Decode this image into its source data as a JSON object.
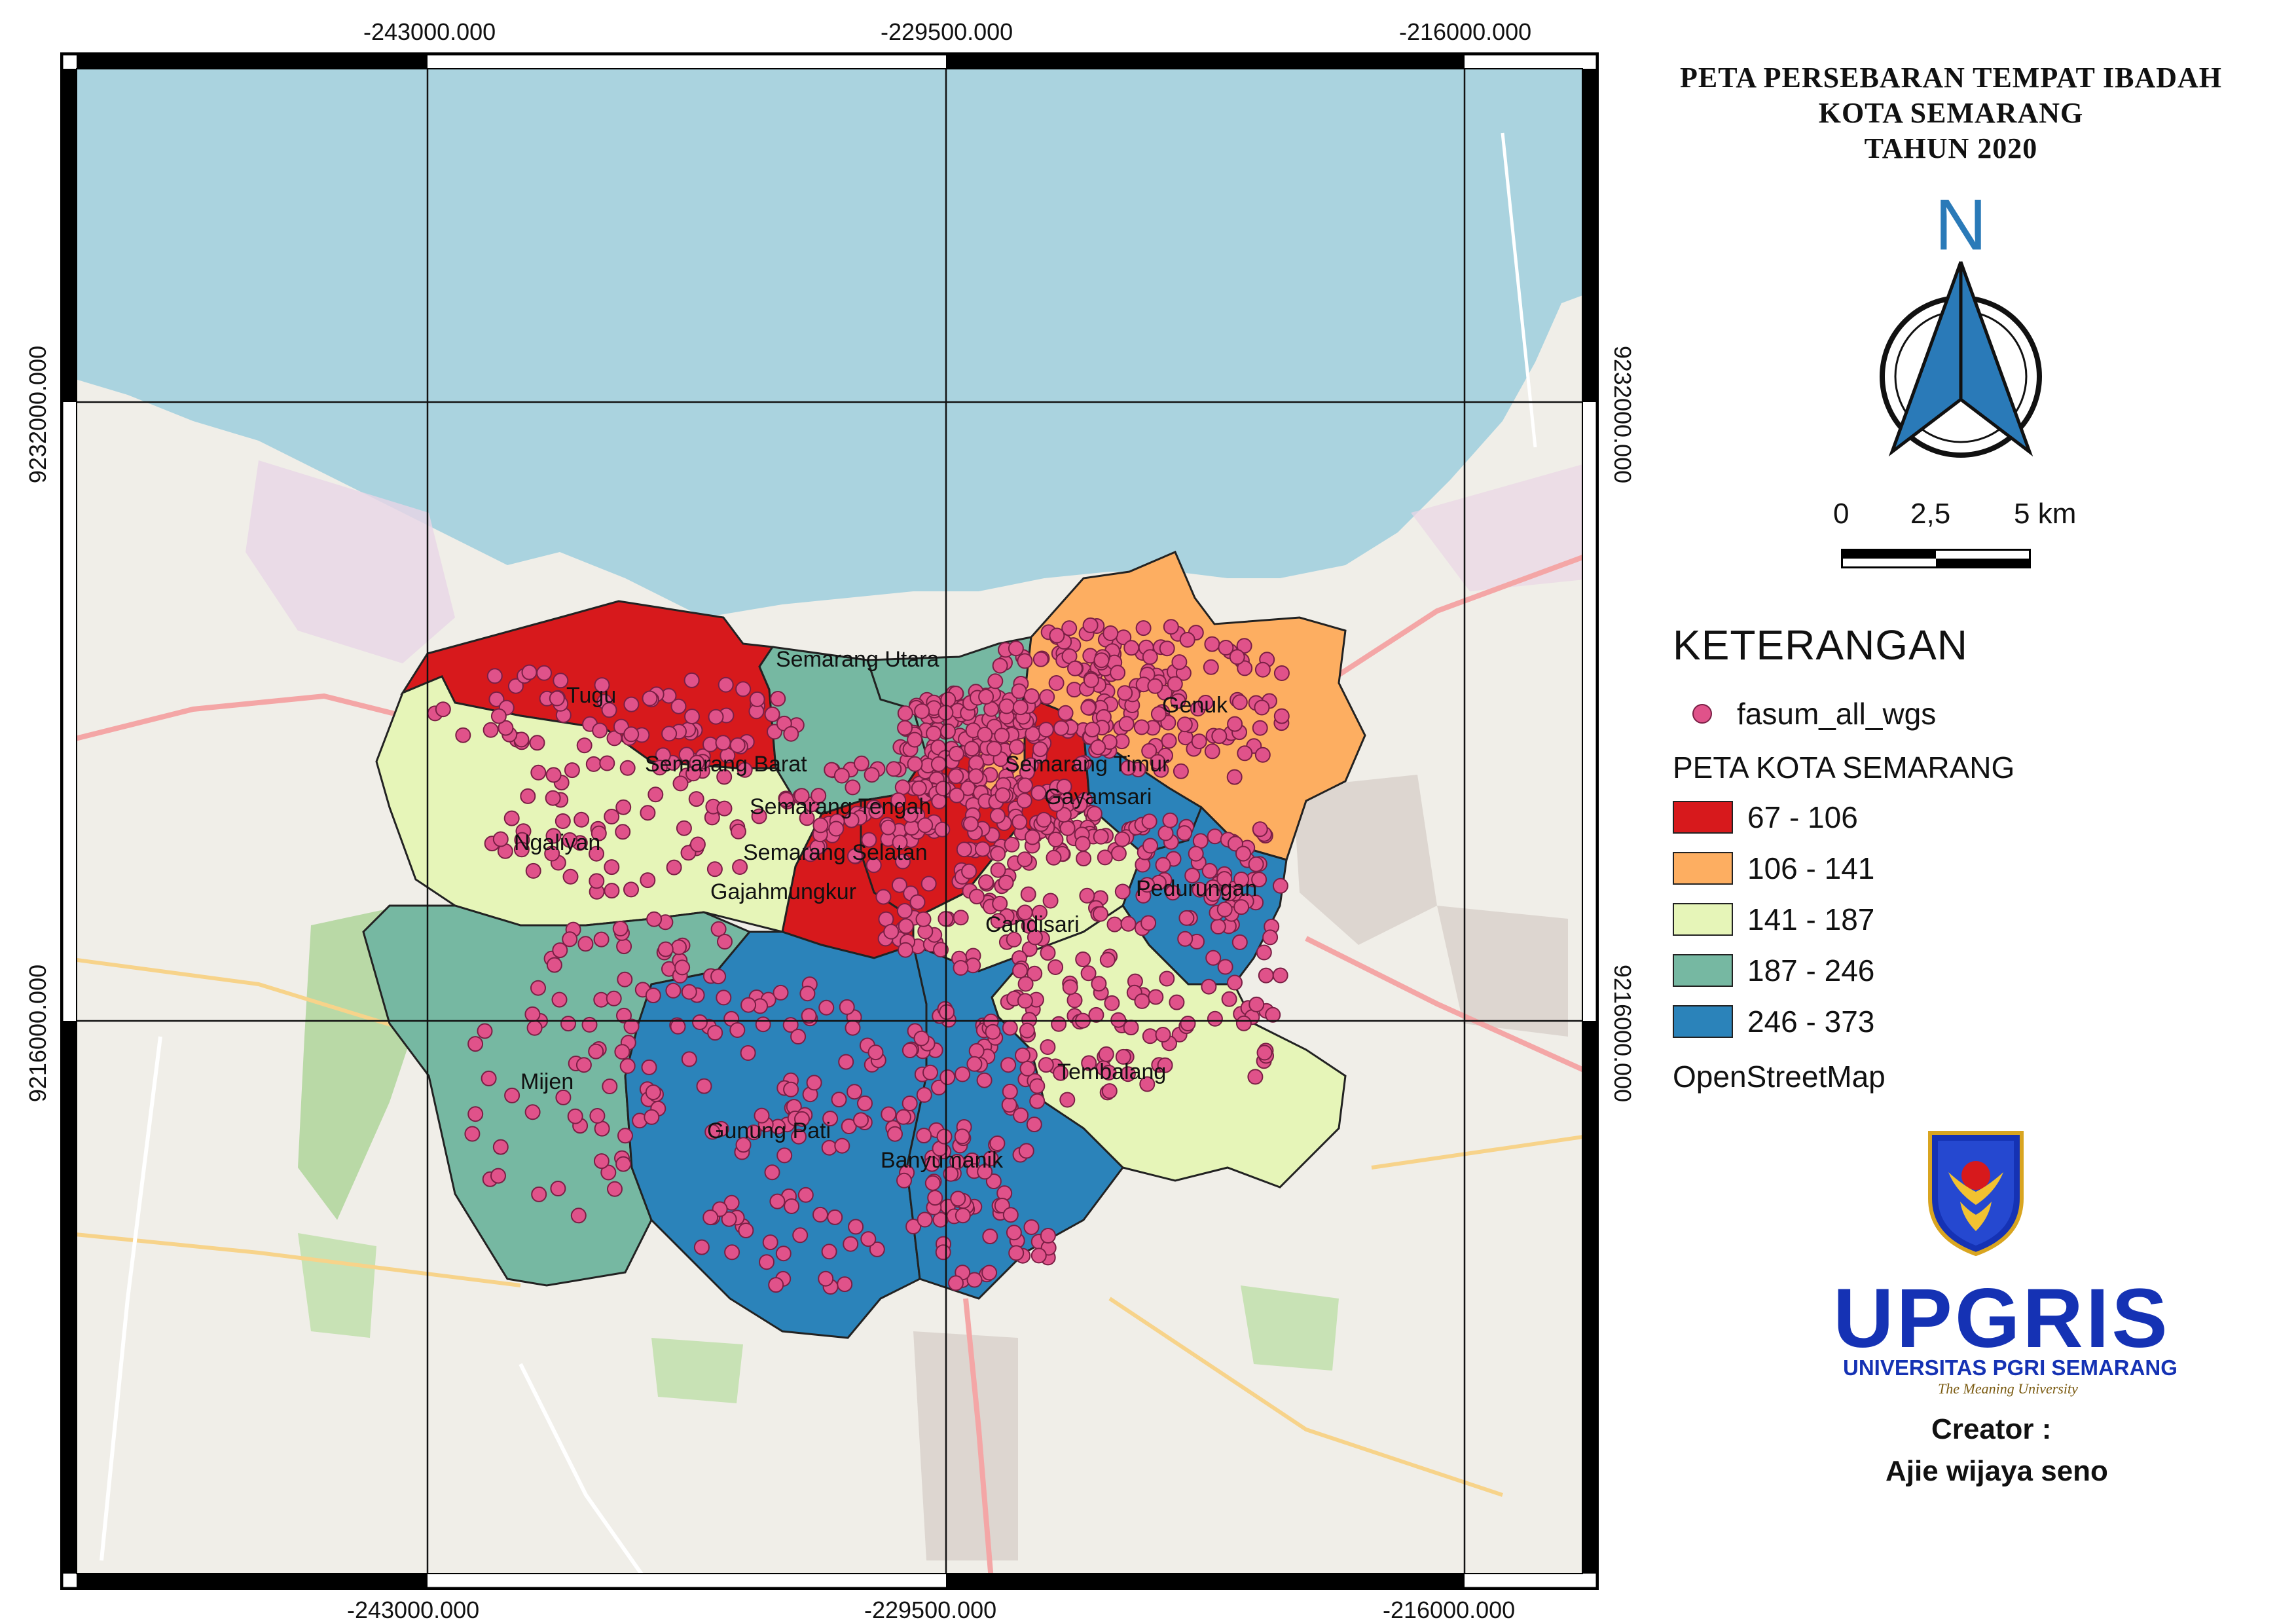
{
  "title": {
    "line1": "PETA PERSEBARAN TEMPAT IBADAH",
    "line2": "KOTA SEMARANG",
    "line3": "TAHUN 2020"
  },
  "coords": {
    "x_top": [
      "-243000.000",
      "-229500.000",
      "-216000.000"
    ],
    "x_bottom": [
      "-243000.000",
      "-229500.000",
      "-216000.000"
    ],
    "y_left": [
      "9232000.000",
      "9216000.000"
    ],
    "y_right": [
      "9232000.000",
      "9216000.000"
    ]
  },
  "north_arrow": {
    "letter": "N",
    "icon": "north-arrow-icon",
    "color": "#2a7ab8"
  },
  "scale": {
    "labels": [
      "0",
      "2,5",
      "5 km"
    ]
  },
  "legend": {
    "title": "KETERANGAN",
    "point_layer": "fasum_all_wgs",
    "point_color": "#e0528a",
    "polygon_layer": "PETA KOTA SEMARANG",
    "classes": [
      {
        "range": "67 - 106",
        "color": "#d7191c"
      },
      {
        "range": "106 - 141",
        "color": "#fdae61"
      },
      {
        "range": "141 - 187",
        "color": "#e6f5b8"
      },
      {
        "range": "187 - 246",
        "color": "#76b8a2"
      },
      {
        "range": "246 - 373",
        "color": "#2b83ba"
      }
    ],
    "basemap": "OpenStreetMap"
  },
  "districts": [
    {
      "name": "Tugu",
      "class": 0
    },
    {
      "name": "Semarang Barat",
      "class": 3
    },
    {
      "name": "Semarang Utara",
      "class": 3
    },
    {
      "name": "Genuk",
      "class": 1
    },
    {
      "name": "Semarang Timur",
      "class": 0
    },
    {
      "name": "Gayamsari",
      "class": 4
    },
    {
      "name": "Semarang Tengah",
      "class": 1
    },
    {
      "name": "Semarang Selatan",
      "class": 0
    },
    {
      "name": "Ngaliyan",
      "class": 2
    },
    {
      "name": "Gajahmungkur",
      "class": 0
    },
    {
      "name": "Pedurungan",
      "class": 4
    },
    {
      "name": "Candisari",
      "class": 2
    },
    {
      "name": "Mijen",
      "class": 3
    },
    {
      "name": "Tembalang",
      "class": 2
    },
    {
      "name": "Gunung Pati",
      "class": 4
    },
    {
      "name": "Banyumanik",
      "class": 4
    }
  ],
  "logo": {
    "name": "UPGRIS",
    "subtitle": "UNIVERSITAS PGRI SEMARANG",
    "tagline": "The Meaning University",
    "shield_text": "UNIVERSITAS PGRI SEMARANG"
  },
  "creator": {
    "label": "Creator :",
    "name": "Ajie wijaya seno"
  }
}
